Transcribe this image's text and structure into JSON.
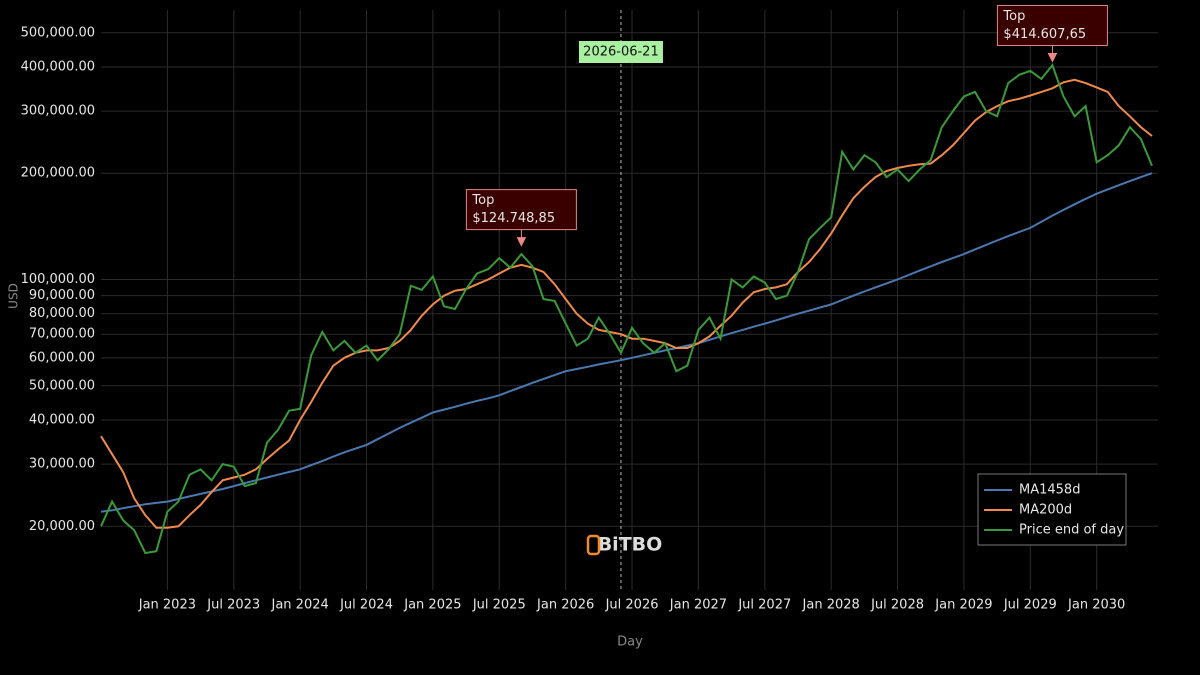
{
  "chart_data": {
    "type": "line",
    "log_y": true,
    "grid": true,
    "legend_position": "lower right",
    "x_label": "Day",
    "y_label": "USD",
    "watermark": "BiTBO",
    "xlim": [
      "2022-07",
      "2030-06"
    ],
    "xticks": [
      {
        "value": "2023-01",
        "label": "Jan 2023"
      },
      {
        "value": "2023-07",
        "label": "Jul 2023"
      },
      {
        "value": "2024-01",
        "label": "Jan 2024"
      },
      {
        "value": "2024-07",
        "label": "Jul 2024"
      },
      {
        "value": "2025-01",
        "label": "Jan 2025"
      },
      {
        "value": "2025-07",
        "label": "Jul 2025"
      },
      {
        "value": "2026-01",
        "label": "Jan 2026"
      },
      {
        "value": "2026-07",
        "label": "Jul 2026"
      },
      {
        "value": "2027-01",
        "label": "Jan 2027"
      },
      {
        "value": "2027-07",
        "label": "Jul 2027"
      },
      {
        "value": "2028-01",
        "label": "Jan 2028"
      },
      {
        "value": "2028-07",
        "label": "Jul 2028"
      },
      {
        "value": "2029-01",
        "label": "Jan 2029"
      },
      {
        "value": "2029-07",
        "label": "Jul 2029"
      },
      {
        "value": "2030-01",
        "label": "Jan 2030"
      }
    ],
    "ylim": [
      13200,
      580000
    ],
    "yticks": [
      {
        "value": 20000,
        "label": "20,000.00"
      },
      {
        "value": 30000,
        "label": "30,000.00"
      },
      {
        "value": 40000,
        "label": "40,000.00"
      },
      {
        "value": 50000,
        "label": "50,000.00"
      },
      {
        "value": 60000,
        "label": "60,000.00"
      },
      {
        "value": 70000,
        "label": "70,000.00"
      },
      {
        "value": 80000,
        "label": "80,000.00"
      },
      {
        "value": 90000,
        "label": "90,000.00"
      },
      {
        "value": 100000,
        "label": "100,000.00"
      },
      {
        "value": 200000,
        "label": "200,000.00"
      },
      {
        "value": 300000,
        "label": "300,000.00"
      },
      {
        "value": 400000,
        "label": "400,000.00"
      },
      {
        "value": 500000,
        "label": "500,000.00"
      }
    ],
    "x": [
      "2022-07",
      "2022-08",
      "2022-09",
      "2022-10",
      "2022-11",
      "2022-12",
      "2023-01",
      "2023-02",
      "2023-03",
      "2023-04",
      "2023-05",
      "2023-06",
      "2023-07",
      "2023-08",
      "2023-09",
      "2023-10",
      "2023-11",
      "2023-12",
      "2024-01",
      "2024-02",
      "2024-03",
      "2024-04",
      "2024-05",
      "2024-06",
      "2024-07",
      "2024-08",
      "2024-09",
      "2024-10",
      "2024-11",
      "2024-12",
      "2025-01",
      "2025-02",
      "2025-03",
      "2025-04",
      "2025-05",
      "2025-06",
      "2025-07",
      "2025-08",
      "2025-09",
      "2025-10",
      "2025-11",
      "2025-12",
      "2026-01",
      "2026-02",
      "2026-03",
      "2026-04",
      "2026-05",
      "2026-06",
      "2026-07",
      "2026-08",
      "2026-09",
      "2026-10",
      "2026-11",
      "2026-12",
      "2027-01",
      "2027-02",
      "2027-03",
      "2027-04",
      "2027-05",
      "2027-06",
      "2027-07",
      "2027-08",
      "2027-09",
      "2027-10",
      "2027-11",
      "2027-12",
      "2028-01",
      "2028-02",
      "2028-03",
      "2028-04",
      "2028-05",
      "2028-06",
      "2028-07",
      "2028-08",
      "2028-09",
      "2028-10",
      "2028-11",
      "2028-12",
      "2029-01",
      "2029-02",
      "2029-03",
      "2029-04",
      "2029-05",
      "2029-06",
      "2029-07",
      "2029-08",
      "2029-09",
      "2029-10",
      "2029-11",
      "2029-12",
      "2030-01",
      "2030-02",
      "2030-03",
      "2030-04",
      "2030-05",
      "2030-06"
    ],
    "series": [
      {
        "name": "MA1458d",
        "color": "#4a78b0",
        "values": [
          22000,
          22200,
          22500,
          22800,
          23100,
          23300,
          23500,
          23900,
          24300,
          24700,
          25100,
          25500,
          26000,
          26500,
          27000,
          27500,
          28000,
          28500,
          29000,
          29800,
          30600,
          31500,
          32400,
          33200,
          34000,
          35300,
          36600,
          38000,
          39300,
          40600,
          42000,
          42800,
          43600,
          44500,
          45300,
          46100,
          47000,
          48300,
          49600,
          51000,
          52300,
          53600,
          55000,
          55800,
          56600,
          57500,
          58300,
          59100,
          60000,
          61000,
          62000,
          63000,
          64000,
          65000,
          66000,
          67500,
          69000,
          70500,
          72000,
          73500,
          75000,
          76600,
          78300,
          80000,
          81600,
          83300,
          85000,
          87500,
          90000,
          92500,
          95000,
          97500,
          100000,
          103000,
          106000,
          109000,
          112000,
          115000,
          118000,
          121700,
          125300,
          129000,
          132700,
          136300,
          140000,
          145800,
          151700,
          157500,
          163300,
          169200,
          175000,
          180000,
          185000,
          190000,
          195000,
          200000
        ]
      },
      {
        "name": "MA200d",
        "color": "#f08a4b",
        "values": [
          36000,
          32000,
          28500,
          24000,
          21500,
          19800,
          19800,
          20000,
          21500,
          23000,
          25000,
          27000,
          27500,
          28000,
          29000,
          31000,
          33000,
          35000,
          40000,
          45000,
          51000,
          57000,
          60000,
          62000,
          63000,
          63000,
          64000,
          67000,
          72000,
          79000,
          85000,
          90000,
          93000,
          94000,
          97000,
          100000,
          104000,
          108000,
          110000,
          108000,
          105000,
          97000,
          88000,
          80000,
          75000,
          72000,
          71000,
          70000,
          68000,
          68000,
          67000,
          66000,
          64000,
          64000,
          66000,
          69000,
          74000,
          79000,
          86000,
          92000,
          94000,
          95000,
          97000,
          105000,
          112000,
          122000,
          135000,
          152000,
          170000,
          183000,
          195000,
          203000,
          207000,
          210000,
          212000,
          213000,
          225000,
          240000,
          260000,
          282000,
          298000,
          310000,
          320000,
          325000,
          332000,
          340000,
          348000,
          362000,
          368000,
          360000,
          350000,
          340000,
          310000,
          290000,
          270000,
          255000
        ]
      },
      {
        "name": "Price end of day",
        "color": "#3a9a3a",
        "values": [
          20000,
          23500,
          20800,
          19500,
          16800,
          17000,
          22000,
          23500,
          28000,
          29000,
          27000,
          30000,
          29500,
          26000,
          26500,
          34500,
          37500,
          42500,
          43000,
          61000,
          71000,
          63000,
          67000,
          62000,
          65000,
          59000,
          63500,
          70000,
          96000,
          93500,
          102000,
          84000,
          82500,
          94000,
          104000,
          107000,
          115000,
          108000,
          118000,
          109000,
          88000,
          87000,
          75000,
          65000,
          68000,
          78000,
          70000,
          62000,
          73000,
          66000,
          62000,
          66000,
          55000,
          57000,
          72000,
          78000,
          68000,
          100000,
          95000,
          102000,
          98000,
          88000,
          90000,
          105000,
          130000,
          140000,
          150000,
          230000,
          205000,
          225000,
          215000,
          195000,
          205000,
          190000,
          205000,
          218000,
          270000,
          300000,
          330000,
          340000,
          300000,
          290000,
          360000,
          380000,
          390000,
          370000,
          405000,
          330000,
          290000,
          310000,
          215000,
          225000,
          240000,
          270000,
          250000,
          210000
        ]
      }
    ],
    "annotations": [
      {
        "label": "Top",
        "value_label": "$124.748,85",
        "x": "2025-09",
        "value": 124748.85
      },
      {
        "label": "Top",
        "value_label": "$414.607,65",
        "x": "2029-09",
        "value": 414607.65
      }
    ],
    "crosshair": {
      "x": "2026-06",
      "label": "2026-06-21"
    }
  }
}
